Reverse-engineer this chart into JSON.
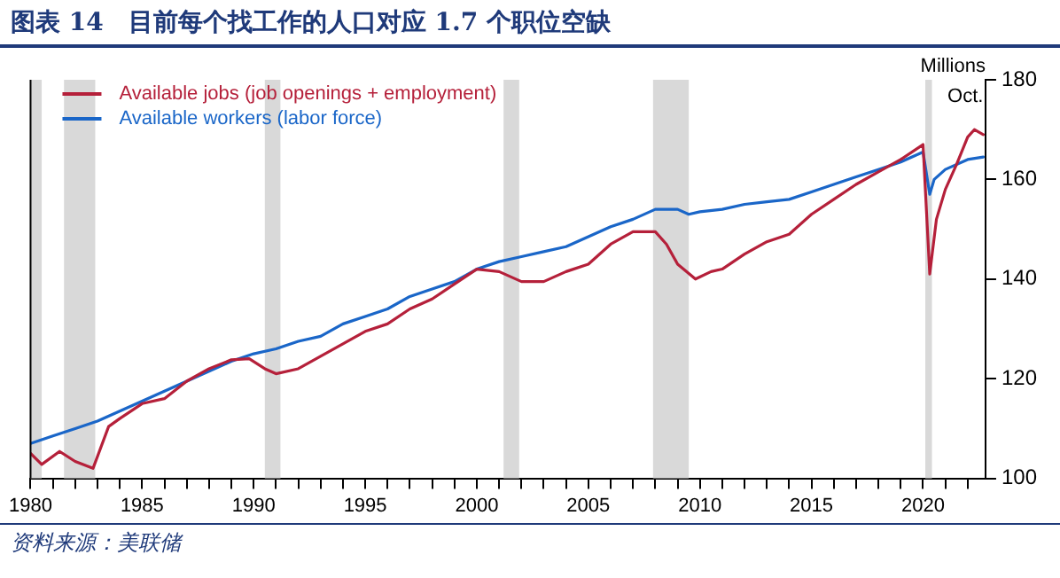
{
  "chart_data": {
    "type": "line",
    "title": "图表 14　目前每个找工作的人口对应 1.7 个职位空缺",
    "ylabel": "Millions",
    "annotations": [
      {
        "text": "Oct.",
        "x": 2022.7,
        "y": 169
      },
      "资料来源：美联储"
    ],
    "series": [
      {
        "name": "Available jobs (job openings + employment)",
        "color": "#b5203a",
        "x": [
          1980,
          1980.5,
          1981.3,
          1982,
          1982.8,
          1983.5,
          1984,
          1985,
          1986,
          1987,
          1988,
          1989,
          1989.8,
          1990.5,
          1991,
          1992,
          1993,
          1994,
          1995,
          1996,
          1997,
          1998,
          1999,
          2000,
          2001,
          2002,
          2003,
          2004,
          2005,
          2006,
          2007,
          2008,
          2008.5,
          2009,
          2009.8,
          2010.5,
          2011,
          2012,
          2013,
          2014,
          2015,
          2016,
          2017,
          2018,
          2019,
          2020,
          2020.3,
          2020.6,
          2021,
          2021.5,
          2022,
          2022.3,
          2022.7
        ],
        "values": [
          105,
          102.8,
          105.4,
          103.4,
          102,
          110.4,
          112,
          115,
          116,
          119.5,
          122,
          123.8,
          124,
          122,
          121,
          122,
          124.5,
          127,
          129.5,
          131,
          134,
          136,
          139,
          142,
          141.5,
          139.5,
          139.5,
          141.5,
          143,
          147,
          149.5,
          149.5,
          147,
          143,
          140,
          141.5,
          142,
          145,
          147.5,
          149,
          153,
          156,
          159,
          161.5,
          164,
          167,
          141,
          152,
          158,
          163,
          168.5,
          170,
          169
        ]
      },
      {
        "name": "Available workers (labor force)",
        "color": "#1a66c8",
        "x": [
          1980,
          1981,
          1982,
          1983,
          1984,
          1985,
          1986,
          1987,
          1988,
          1989,
          1990,
          1991,
          1992,
          1993,
          1994,
          1995,
          1996,
          1997,
          1998,
          1999,
          2000,
          2001,
          2002,
          2003,
          2004,
          2005,
          2006,
          2007,
          2008,
          2009,
          2009.5,
          2010,
          2011,
          2012,
          2013,
          2014,
          2015,
          2016,
          2017,
          2018,
          2019,
          2020,
          2020.3,
          2020.5,
          2021,
          2022,
          2022.7
        ],
        "values": [
          107,
          108.5,
          110,
          111.5,
          113.5,
          115.5,
          117.5,
          119.5,
          121.5,
          123.5,
          125,
          126,
          127.5,
          128.5,
          131,
          132.5,
          134,
          136.5,
          138,
          139.5,
          142,
          143.5,
          144.5,
          145.5,
          146.5,
          148.5,
          150.5,
          152,
          154,
          154,
          153,
          153.5,
          154,
          155,
          155.5,
          156,
          157.5,
          159,
          160.5,
          162,
          163.5,
          165.5,
          157,
          160,
          162,
          164,
          164.5
        ]
      }
    ],
    "bands": [
      {
        "axis": "x",
        "from": 1980,
        "to": 1980.5,
        "color": "#d9d9d9"
      },
      {
        "axis": "x",
        "from": 1981.5,
        "to": 1982.9,
        "color": "#d9d9d9"
      },
      {
        "axis": "x",
        "from": 1990.5,
        "to": 1991.2,
        "color": "#d9d9d9"
      },
      {
        "axis": "x",
        "from": 2001.2,
        "to": 2001.9,
        "color": "#d9d9d9"
      },
      {
        "axis": "x",
        "from": 2007.9,
        "to": 2009.5,
        "color": "#d9d9d9"
      },
      {
        "axis": "x",
        "from": 2020.1,
        "to": 2020.4,
        "color": "#d9d9d9"
      }
    ],
    "xlim": [
      1980,
      2022.8
    ],
    "xticks": [
      1980,
      {
        "value": 1981,
        "label": null
      },
      {
        "value": 1982,
        "label": null
      },
      {
        "value": 1983,
        "label": null
      },
      {
        "value": 1984,
        "label": null
      },
      1985,
      {
        "value": 1986,
        "label": null
      },
      {
        "value": 1987,
        "label": null
      },
      {
        "value": 1988,
        "label": null
      },
      {
        "value": 1989,
        "label": null
      },
      1990,
      {
        "value": 1991,
        "label": null
      },
      {
        "value": 1992,
        "label": null
      },
      {
        "value": 1993,
        "label": null
      },
      {
        "value": 1994,
        "label": null
      },
      1995,
      {
        "value": 1996,
        "label": null
      },
      {
        "value": 1997,
        "label": null
      },
      {
        "value": 1998,
        "label": null
      },
      {
        "value": 1999,
        "label": null
      },
      2000,
      {
        "value": 2001,
        "label": null
      },
      {
        "value": 2002,
        "label": null
      },
      {
        "value": 2003,
        "label": null
      },
      {
        "value": 2004,
        "label": null
      },
      2005,
      {
        "value": 2006,
        "label": null
      },
      {
        "value": 2007,
        "label": null
      },
      {
        "value": 2008,
        "label": null
      },
      {
        "value": 2009,
        "label": null
      },
      2010,
      {
        "value": 2011,
        "label": null
      },
      {
        "value": 2012,
        "label": null
      },
      {
        "value": 2013,
        "label": null
      },
      {
        "value": 2014,
        "label": null
      },
      2015,
      {
        "value": 2016,
        "label": null
      },
      {
        "value": 2017,
        "label": null
      },
      {
        "value": 2018,
        "label": null
      },
      {
        "value": 2019,
        "label": null
      },
      2020,
      {
        "value": 2021,
        "label": null
      },
      {
        "value": 2022,
        "label": null
      }
    ],
    "ylim": [
      100,
      180
    ],
    "yticks": [
      100,
      120,
      140,
      160,
      180
    ],
    "grid": false,
    "legend": "top left",
    "marker": "none",
    "line_style": "solid"
  }
}
